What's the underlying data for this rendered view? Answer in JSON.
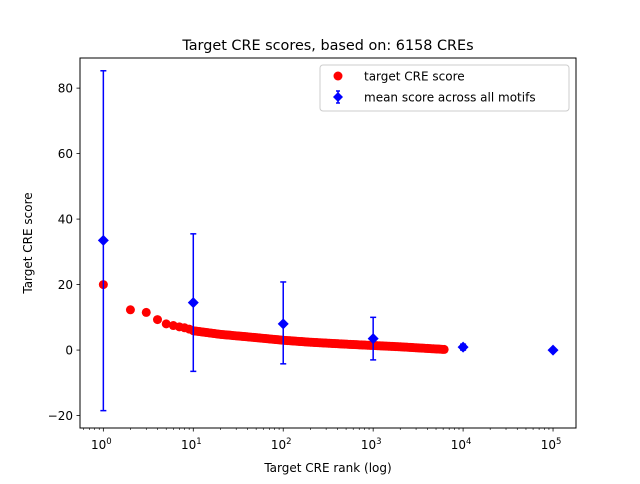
{
  "chart_data": {
    "type": "scatter",
    "title": "Target CRE scores, based on: 6158 CREs",
    "xlabel": "Target CRE rank (log)",
    "ylabel": "Target CRE score",
    "xscale": "log",
    "xlim": [
      0.55,
      180000
    ],
    "ylim": [
      -23.8,
      89.2
    ],
    "grid": false,
    "legend_position": "top-right",
    "x_ticks": [
      1,
      10,
      100,
      1000,
      10000,
      100000
    ],
    "x_tick_labels": [
      [
        "10",
        "0"
      ],
      [
        "10",
        "1"
      ],
      [
        "10",
        "2"
      ],
      [
        "10",
        "3"
      ],
      [
        "10",
        "4"
      ],
      [
        "10",
        "5"
      ]
    ],
    "y_ticks": [
      -20,
      0,
      20,
      40,
      60,
      80
    ],
    "y_tick_labels": [
      "−20",
      "0",
      "20",
      "40",
      "60",
      "80"
    ],
    "series": [
      {
        "name": "target CRE score",
        "kind": "markers",
        "color": "#ff0000",
        "marker": "circle",
        "x": [
          1,
          2,
          3,
          4,
          5,
          6,
          7,
          8,
          9,
          10,
          20,
          50,
          100,
          200,
          500,
          1000,
          2000,
          4000,
          6158
        ],
        "y": [
          20,
          12.3,
          11.5,
          9.3,
          8,
          7.5,
          7.1,
          6.8,
          6.4,
          5.9,
          4.8,
          3.8,
          3.0,
          2.4,
          1.8,
          1.4,
          1.0,
          0.5,
          0.2
        ]
      },
      {
        "name": "mean score across all motifs",
        "kind": "errorbar",
        "color": "#0000ff",
        "marker": "diamond",
        "x": [
          1,
          10,
          100,
          1000,
          10000,
          100000
        ],
        "y": [
          33.5,
          14.5,
          8.0,
          3.5,
          0.9,
          0.0
        ],
        "err_low": [
          -18.5,
          -6.5,
          -4.2,
          -3.0,
          0.0,
          0.0
        ],
        "err_high": [
          85.3,
          35.5,
          20.8,
          10.0,
          1.8,
          0.0
        ]
      }
    ]
  }
}
